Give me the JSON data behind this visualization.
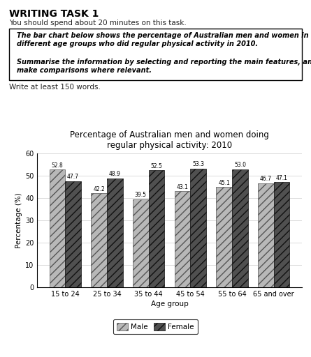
{
  "title": "Percentage of Australian men and women doing\nregular physical activity: 2010",
  "categories": [
    "15 to 24",
    "25 to 34",
    "35 to 44",
    "45 to 54",
    "55 to 64",
    "65 and over"
  ],
  "male_values": [
    52.8,
    42.2,
    39.5,
    43.1,
    45.1,
    46.7
  ],
  "female_values": [
    47.7,
    48.9,
    52.5,
    53.3,
    53.0,
    47.1
  ],
  "ylabel": "Percentage (%)",
  "xlabel": "Age group",
  "ylim": [
    0,
    60
  ],
  "yticks": [
    0,
    10,
    20,
    30,
    40,
    50,
    60
  ],
  "male_color": "#b8b8b8",
  "female_color": "#505050",
  "bar_width": 0.38,
  "header_title": "WRITING TASK 1",
  "header_sub": "You should spend about 20 minutes on this task.",
  "box_text1": "The bar chart below shows the percentage of Australian men and women in\ndifferent age groups who did regular physical activity in 2010.",
  "box_text2": "Summarise the information by selecting and reporting the main features, and\nmake comparisons where relevant.",
  "footer": "Write at least 150 words.",
  "legend_labels": [
    "Male",
    "Female"
  ],
  "title_fontsize": 8.5,
  "label_fontsize": 7,
  "tick_fontsize": 7,
  "bar_label_fontsize": 5.5
}
